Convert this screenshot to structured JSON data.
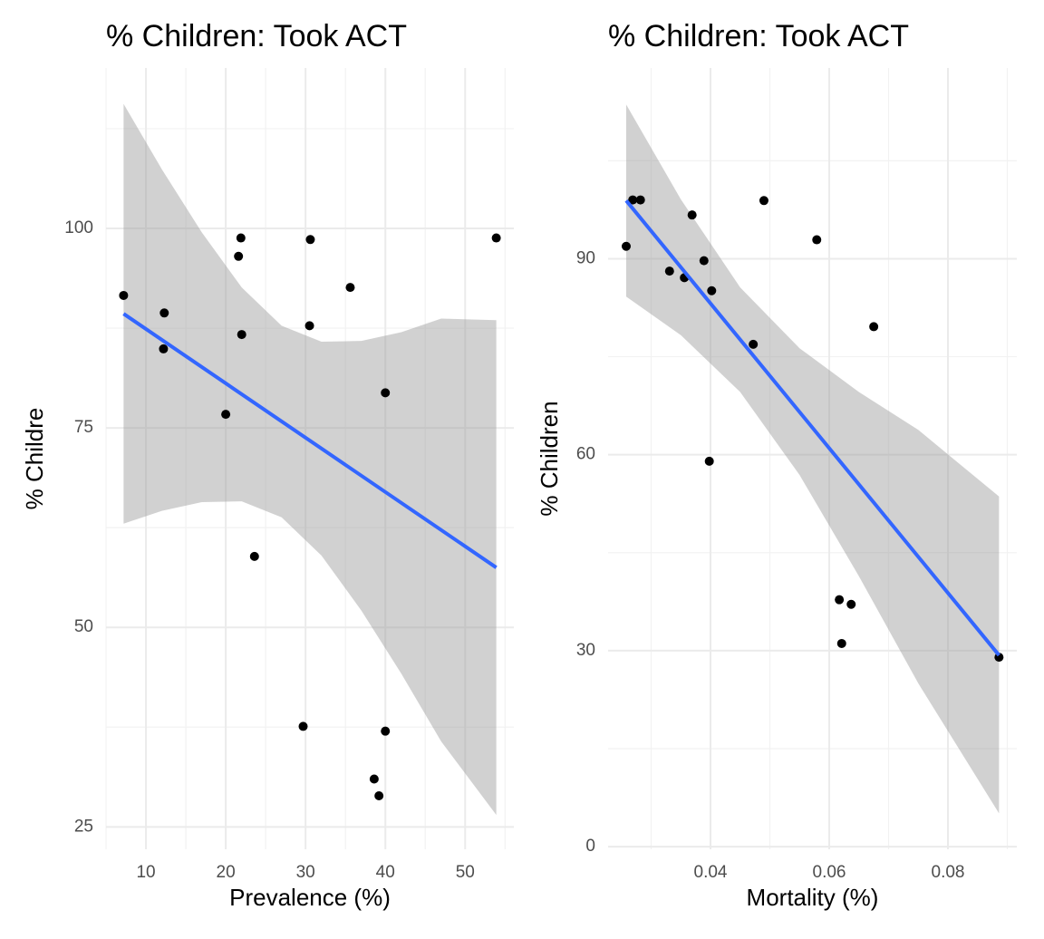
{
  "chart_data": [
    {
      "type": "scatter",
      "title": "% Children: Took ACT",
      "x_label": "Prevalence (%)",
      "y_label": "% Childre",
      "x": [
        7.2,
        12.3,
        12.2,
        21.9,
        21.6,
        22.0,
        20.0,
        23.6,
        30.6,
        30.5,
        35.6,
        53.9,
        40.0,
        29.7,
        40.0,
        38.6,
        39.2
      ],
      "y": [
        91.6,
        89.4,
        84.9,
        98.8,
        96.5,
        86.7,
        76.7,
        58.9,
        98.6,
        87.8,
        92.6,
        98.8,
        79.4,
        37.6,
        37.0,
        31.0,
        28.9
      ],
      "point_color": "#000000",
      "fit": {
        "color": "#3366ff",
        "x": [
          7.2,
          53.9
        ],
        "y": [
          89.3,
          57.5
        ]
      },
      "ribbon": {
        "color": "#999999",
        "x": [
          7.2,
          12,
          17,
          22,
          27,
          32,
          37,
          42,
          47,
          53.9
        ],
        "upper": [
          115.6,
          107.4,
          99.5,
          92.6,
          87.8,
          85.8,
          85.9,
          87.0,
          88.7,
          88.5
        ],
        "lower": [
          63.0,
          64.6,
          65.7,
          65.8,
          63.8,
          59.0,
          52.1,
          44.2,
          35.7,
          26.5
        ]
      },
      "xlim": [
        5,
        56.1
      ],
      "ylim": [
        22.2,
        120.1
      ],
      "xticks": [
        10,
        20,
        30,
        40,
        50
      ],
      "yticks": [
        25,
        50,
        75,
        100
      ],
      "x_minor_grid": [
        5,
        15,
        25,
        35,
        45,
        55
      ],
      "y_minor_grid": [
        37.5,
        62.5,
        87.5,
        112.5
      ],
      "grid": true
    },
    {
      "type": "scatter",
      "title": "% Children: Took ACT",
      "x_label": "Mortality (%)",
      "y_label": "% Children",
      "x": [
        0.0258,
        0.0269,
        0.0282,
        0.0331,
        0.0356,
        0.0369,
        0.0389,
        0.0402,
        0.0472,
        0.049,
        0.0579,
        0.0675,
        0.0398,
        0.0617,
        0.0637,
        0.0621,
        0.0886
      ],
      "y": [
        91.9,
        99.0,
        99.0,
        88.1,
        87.1,
        96.7,
        89.7,
        85.1,
        76.9,
        98.9,
        92.9,
        79.6,
        59.0,
        37.8,
        37.1,
        31.1,
        29.0
      ],
      "point_color": "#000000",
      "fit": {
        "color": "#3366ff",
        "x": [
          0.0258,
          0.0886
        ],
        "y": [
          98.9,
          29.3
        ]
      },
      "ribbon": {
        "color": "#999999",
        "x": [
          0.0258,
          0.035,
          0.045,
          0.055,
          0.065,
          0.075,
          0.0886
        ],
        "upper": [
          113.6,
          99.1,
          85.6,
          76.3,
          69.6,
          63.8,
          53.6
        ],
        "lower": [
          84.2,
          78.3,
          69.6,
          56.9,
          41.4,
          25.0,
          5.1
        ]
      },
      "xlim": [
        0.02275,
        0.0916
      ],
      "ylim": [
        -0.4,
        119.2
      ],
      "xticks": [
        0.04,
        0.06,
        0.08
      ],
      "yticks": [
        0,
        30,
        60,
        90
      ],
      "x_minor_grid": [
        0.03,
        0.05,
        0.07,
        0.09
      ],
      "y_minor_grid": [
        15,
        45,
        75,
        105
      ],
      "grid": true
    }
  ]
}
